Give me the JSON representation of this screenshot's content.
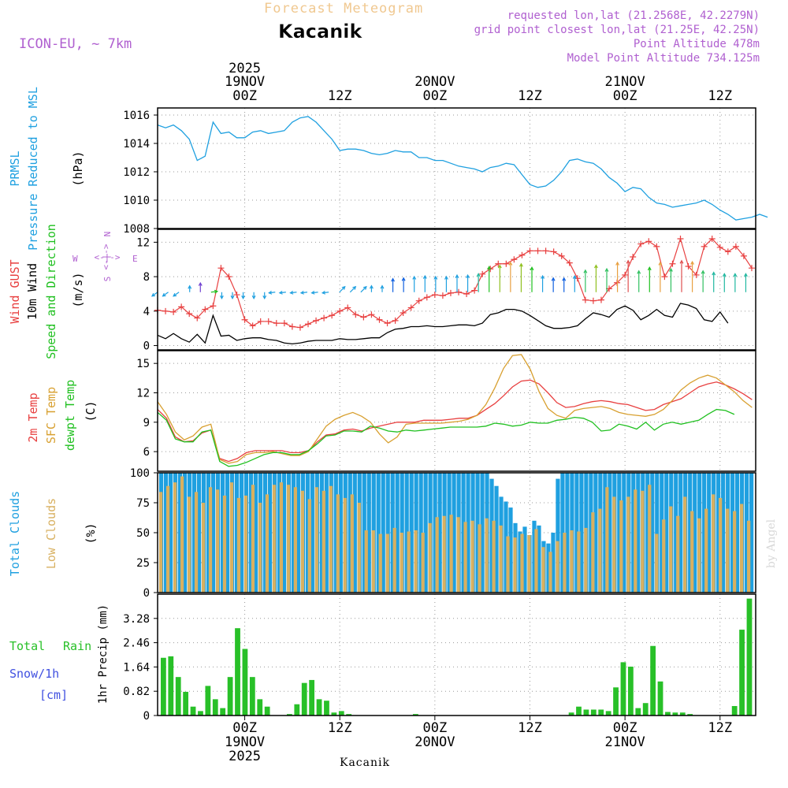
{
  "header": {
    "super_title": "Forecast Meteogram",
    "location": "Kacanik",
    "model": "ICON-EU, ~ 7km",
    "requested": "requested lon,lat (21.2568E, 42.2279N)",
    "grid_point": "grid point closest lon,lat (21.25E, 42.25N)",
    "point_altitude": "Point Altitude 478m",
    "model_altitude": "Model Point Altitude 734.125m",
    "footer_location": "Kacanik",
    "watermark": "by Angel"
  },
  "colors": {
    "pressure": "#1fa0e0",
    "gust": "#e84040",
    "wind": "#000000",
    "temp2m": "#e84040",
    "sfc": "#d8a030",
    "dewpt": "#20c020",
    "total_clouds": "#1fa0e0",
    "low_clouds": "#d8b060",
    "rain": "#28c028",
    "snow": "#4050e0",
    "purple": "#b060d0",
    "title": "#f0c890"
  },
  "time_axis": {
    "top": [
      {
        "hour": 18,
        "line1": "2025",
        "line2": "19NOV",
        "line3": "00Z"
      },
      {
        "hour": 30,
        "line1": "",
        "line2": "",
        "line3": "12Z"
      },
      {
        "hour": 42,
        "line1": "",
        "line2": "20NOV",
        "line3": "00Z"
      },
      {
        "hour": 54,
        "line1": "",
        "line2": "",
        "line3": "12Z"
      },
      {
        "hour": 66,
        "line1": "",
        "line2": "21NOV",
        "line3": "00Z"
      },
      {
        "hour": 78,
        "line1": "",
        "line2": "",
        "line3": "12Z"
      }
    ],
    "bottom": [
      {
        "hour": 18,
        "line1": "00Z",
        "line2": "19NOV",
        "line3": "2025"
      },
      {
        "hour": 30,
        "line1": "12Z",
        "line2": "",
        "line3": ""
      },
      {
        "hour": 42,
        "line1": "00Z",
        "line2": "20NOV",
        "line3": ""
      },
      {
        "hour": 54,
        "line1": "12Z",
        "line2": "",
        "line3": ""
      },
      {
        "hour": 66,
        "line1": "00Z",
        "line2": "21NOV",
        "line3": ""
      },
      {
        "hour": 78,
        "line1": "12Z",
        "line2": "",
        "line3": ""
      }
    ]
  },
  "panels": {
    "pressure": {
      "labels": [
        "PRMSL",
        "Pressure Reduced to MSL",
        "(hPa)"
      ],
      "ticks": [
        1008,
        1010,
        1012,
        1014,
        1016
      ]
    },
    "wind": {
      "labels": [
        "Wind GUST",
        "10m Wind",
        "Speed and Direction",
        "(m/s)"
      ],
      "ticks": [
        0,
        4,
        8,
        12
      ],
      "compass": {
        "n": "N",
        "s": "S",
        "w": "W",
        "e": "E",
        "arrow": "<-|->"
      }
    },
    "temp": {
      "labels": [
        "2m Temp",
        "SFC Temp",
        "dewpt Temp",
        "(C)"
      ],
      "ticks": [
        6,
        9,
        12,
        15
      ]
    },
    "clouds": {
      "labels": [
        "Total Clouds",
        "Low Clouds",
        "(%)"
      ],
      "ticks": [
        0,
        25,
        50,
        75,
        100
      ]
    },
    "precip": {
      "labels": [
        "Total",
        "Rain",
        "Snow/1h",
        "[cm]",
        "1hr Precip (mm)"
      ],
      "ticks": [
        "0",
        "0.82",
        "1.64",
        "2.46",
        "3.28"
      ]
    }
  },
  "chart_data": [
    {
      "type": "line",
      "title": "PRMSL Pressure Reduced to MSL",
      "ylabel": "hPa",
      "ylim": [
        1008,
        1016.5
      ],
      "x_start_hour": 7,
      "x_step_hours": 1,
      "x_end_hour": 82,
      "series": [
        {
          "name": "PRMSL",
          "values": [
            1015.3,
            1015.1,
            1015.3,
            1014.9,
            1014.3,
            1012.8,
            1013.1,
            1015.5,
            1014.7,
            1014.8,
            1014.4,
            1014.4,
            1014.8,
            1014.9,
            1014.7,
            1014.8,
            1014.9,
            1015.5,
            1015.8,
            1015.9,
            1015.5,
            1014.9,
            1014.3,
            1013.5,
            1013.6,
            1013.6,
            1013.5,
            1013.3,
            1013.2,
            1013.3,
            1013.5,
            1013.4,
            1013.4,
            1013.0,
            1013.0,
            1012.8,
            1012.8,
            1012.6,
            1012.4,
            1012.3,
            1012.2,
            1012.0,
            1012.3,
            1012.4,
            1012.6,
            1012.5,
            1011.8,
            1011.1,
            1010.9,
            1011.0,
            1011.4,
            1012.0,
            1012.8,
            1012.9,
            1012.7,
            1012.6,
            1012.2,
            1011.6,
            1011.2,
            1010.6,
            1010.9,
            1010.8,
            1010.2,
            1009.8,
            1009.7,
            1009.5,
            1009.6,
            1009.7,
            1009.8,
            1010.0,
            1009.7,
            1009.3,
            1009.0,
            1008.6,
            1008.7,
            1008.8,
            1009.0,
            1008.8
          ]
        }
      ]
    },
    {
      "type": "line",
      "title": "Wind GUST / 10m Wind Speed and Direction",
      "ylabel": "m/s",
      "ylim": [
        -0.5,
        13.5
      ],
      "x_start_hour": 7,
      "x_step_hours": 1,
      "series": [
        {
          "name": "Wind GUST",
          "values": [
            4.1,
            4.0,
            3.9,
            4.5,
            3.7,
            3.2,
            4.2,
            4.6,
            9.0,
            8.0,
            5.9,
            3.0,
            2.3,
            2.8,
            2.8,
            2.6,
            2.6,
            2.2,
            2.1,
            2.5,
            2.9,
            3.2,
            3.5,
            4.0,
            4.4,
            3.6,
            3.3,
            3.6,
            3.0,
            2.6,
            2.9,
            3.8,
            4.4,
            5.2,
            5.6,
            5.9,
            5.8,
            6.1,
            6.2,
            6.0,
            6.4,
            8.3,
            8.9,
            9.5,
            9.5,
            10.0,
            10.5,
            11.0,
            11.0,
            11.0,
            10.9,
            10.4,
            9.6,
            7.8,
            5.3,
            5.2,
            5.3,
            6.6,
            7.3,
            8.2,
            10.3,
            11.8,
            12.1,
            11.5,
            8.0,
            9.5,
            12.4,
            9.2,
            8.2,
            11.5,
            12.4,
            11.4,
            10.9,
            11.5,
            10.4,
            9.0
          ]
        },
        {
          "name": "10m Wind",
          "values": [
            1.2,
            0.8,
            1.4,
            0.8,
            0.4,
            1.3,
            0.3,
            3.5,
            1.1,
            1.2,
            0.6,
            0.8,
            0.9,
            0.9,
            0.7,
            0.6,
            0.3,
            0.2,
            0.3,
            0.5,
            0.6,
            0.6,
            0.6,
            0.8,
            0.7,
            0.7,
            0.8,
            0.9,
            0.9,
            1.5,
            1.9,
            2.0,
            2.2,
            2.2,
            2.3,
            2.2,
            2.2,
            2.3,
            2.4,
            2.4,
            2.3,
            2.6,
            3.6,
            3.8,
            4.2,
            4.2,
            4.0,
            3.5,
            2.9,
            2.3,
            2.0,
            2.0,
            2.1,
            2.3,
            3.1,
            3.8,
            3.6,
            3.3,
            4.2,
            4.6,
            4.1,
            3.0,
            3.5,
            4.2,
            3.5,
            3.3,
            4.9,
            4.7,
            4.3,
            3.0,
            2.8,
            3.9,
            2.6
          ]
        }
      ],
      "barbs": {
        "band_directions": [
          "SW",
          "SW",
          "SW",
          "N",
          "N",
          "E",
          "S",
          "S",
          "S",
          "S",
          "S",
          "W",
          "W",
          "W",
          "W",
          "W",
          "W",
          "NE",
          "NE",
          "NE",
          "N",
          "N",
          "N",
          "N",
          "N",
          "N",
          "N",
          "N",
          "N",
          "N",
          "N",
          "N",
          "N",
          "N",
          "N",
          "N",
          "N",
          "N",
          "N",
          "N",
          "N",
          "N",
          "N",
          "N",
          "N",
          "N",
          "N",
          "N",
          "N",
          "N",
          "N",
          "N",
          "N",
          "N",
          "N",
          "N"
        ]
      }
    },
    {
      "type": "line",
      "title": "2m Temp / SFC Temp / dewpt Temp",
      "ylabel": "C",
      "ylim": [
        4,
        16.3
      ],
      "x_start_hour": 7,
      "x_step_hours": 1,
      "series": [
        {
          "name": "2m Temp",
          "values": [
            10.3,
            9.4,
            7.5,
            7.0,
            7.1,
            7.9,
            8.2,
            5.3,
            5.0,
            5.3,
            5.9,
            6.1,
            6.1,
            6.1,
            6.1,
            5.9,
            5.9,
            6.1,
            7.0,
            7.7,
            7.8,
            8.2,
            8.3,
            8.1,
            8.4,
            8.6,
            8.8,
            9.0,
            9.0,
            9.0,
            9.2,
            9.2,
            9.2,
            9.3,
            9.4,
            9.4,
            9.7,
            10.3,
            10.9,
            11.7,
            12.6,
            13.2,
            13.3,
            12.9,
            12.0,
            11.0,
            10.5,
            10.6,
            10.9,
            11.1,
            11.2,
            11.1,
            10.9,
            10.8,
            10.5,
            10.2,
            10.3,
            10.8,
            11.1,
            11.4,
            12.0,
            12.6,
            12.9,
            13.1,
            12.8,
            12.4,
            11.9,
            11.3
          ]
        },
        {
          "name": "SFC Temp",
          "values": [
            11.1,
            9.8,
            8.0,
            7.2,
            7.6,
            8.5,
            8.8,
            5.2,
            4.8,
            5.0,
            5.7,
            5.9,
            5.9,
            6.0,
            5.8,
            5.6,
            5.6,
            6.0,
            7.3,
            8.6,
            9.3,
            9.7,
            10.0,
            9.6,
            9.0,
            7.8,
            6.9,
            7.5,
            8.8,
            8.9,
            8.9,
            8.9,
            8.9,
            9.0,
            9.1,
            9.3,
            9.7,
            10.8,
            12.5,
            14.5,
            15.8,
            15.9,
            14.4,
            12.1,
            10.4,
            9.7,
            9.4,
            10.2,
            10.4,
            10.5,
            10.6,
            10.4,
            10.0,
            9.8,
            9.7,
            9.6,
            9.8,
            10.3,
            11.2,
            12.3,
            13.0,
            13.5,
            13.8,
            13.5,
            12.8,
            12.1,
            11.2,
            10.5
          ]
        },
        {
          "name": "dewpt Temp",
          "values": [
            10.0,
            9.2,
            7.3,
            7.0,
            7.0,
            8.0,
            8.2,
            5.0,
            4.5,
            4.6,
            4.9,
            5.3,
            5.7,
            5.9,
            5.9,
            5.7,
            5.7,
            6.1,
            6.8,
            7.6,
            7.7,
            8.1,
            8.1,
            8.0,
            8.6,
            8.4,
            8.1,
            8.0,
            8.2,
            8.1,
            8.2,
            8.3,
            8.4,
            8.5,
            8.5,
            8.5,
            8.5,
            8.6,
            8.9,
            8.8,
            8.6,
            8.7,
            9.0,
            8.9,
            8.9,
            9.2,
            9.3,
            9.5,
            9.4,
            9.0,
            8.1,
            8.2,
            8.8,
            8.6,
            8.3,
            9.0,
            8.2,
            8.8,
            9.0,
            8.8,
            9.0,
            9.2,
            9.8,
            10.3,
            10.2,
            9.8
          ]
        }
      ]
    },
    {
      "type": "bar",
      "title": "Total Clouds / Low Clouds",
      "ylabel": "%",
      "ylim": [
        0,
        100
      ],
      "x_start_hour": 7,
      "x_step_hours": 1,
      "series": [
        {
          "name": "Total Clouds",
          "values": [
            100,
            100,
            100,
            100,
            100,
            100,
            100,
            100,
            100,
            100,
            100,
            100,
            100,
            100,
            100,
            100,
            100,
            100,
            100,
            100,
            100,
            100,
            100,
            100,
            100,
            100,
            100,
            100,
            100,
            100,
            100,
            100,
            100,
            100,
            100,
            100,
            100,
            100,
            100,
            100,
            100,
            100,
            100,
            100,
            100,
            100,
            100,
            100,
            100,
            100,
            100,
            100,
            100,
            100,
            100,
            100,
            100,
            100,
            100,
            100,
            100,
            100,
            100,
            100,
            100,
            100,
            100,
            100,
            100,
            100,
            95,
            89,
            80,
            76,
            71,
            58,
            51,
            55,
            48,
            60,
            56,
            43,
            41,
            50,
            95,
            100,
            100,
            100,
            100,
            100,
            100,
            100,
            100,
            100,
            100,
            100,
            100,
            100,
            100,
            100,
            100,
            100,
            100,
            100,
            100,
            100,
            100,
            100,
            100,
            100,
            100,
            100,
            100,
            100,
            100,
            100,
            100,
            100,
            100,
            100,
            100,
            100,
            100,
            100,
            100,
            100
          ]
        },
        {
          "name": "Low Clouds",
          "values": [
            84,
            89,
            92,
            97,
            80,
            84,
            75,
            88,
            86,
            81,
            92,
            79,
            81,
            90,
            75,
            82,
            90,
            92,
            90,
            88,
            85,
            78,
            88,
            85,
            89,
            82,
            79,
            82,
            75,
            52,
            52,
            49,
            49,
            54,
            50,
            51,
            52,
            50,
            58,
            63,
            64,
            65,
            63,
            59,
            60,
            57,
            62,
            60,
            56,
            47,
            46,
            49,
            48,
            53,
            38,
            34,
            43,
            50,
            52,
            51,
            54,
            67,
            70,
            88,
            80,
            77,
            80,
            86,
            85,
            90,
            49,
            61,
            72,
            64,
            80,
            68,
            62,
            70,
            82,
            79,
            70,
            68,
            74,
            60
          ]
        }
      ]
    },
    {
      "type": "bar",
      "title": "1hr Precip (mm)",
      "ylabel": "mm",
      "ylim": [
        0,
        4.1
      ],
      "x_start_hour": 7,
      "x_step_hours": 1,
      "series": [
        {
          "name": "Total Rain",
          "values": [
            1.95,
            2.0,
            1.3,
            0.8,
            0.3,
            0.15,
            1.0,
            0.55,
            0.25,
            1.3,
            2.95,
            2.25,
            1.3,
            0.55,
            0.3,
            0.0,
            0.0,
            0.05,
            0.38,
            1.1,
            1.2,
            0.55,
            0.5,
            0.1,
            0.15,
            0.05,
            0.0,
            0.0,
            0.0,
            0.0,
            0.0,
            0.0,
            0.0,
            0.0,
            0.05,
            0.0,
            0.0,
            0.0,
            0.0,
            0.0,
            0.0,
            0.0,
            0.0,
            0.0,
            0.0,
            0.0,
            0.0,
            0.0,
            0.0,
            0.0,
            0.0,
            0.0,
            0.0,
            0.0,
            0.0,
            0.1,
            0.3,
            0.2,
            0.2,
            0.2,
            0.15,
            0.95,
            1.8,
            1.65,
            0.25,
            0.42,
            2.35,
            1.15,
            0.12,
            0.1,
            0.1,
            0.05,
            0.0,
            0.0,
            0.0,
            0.0,
            0.0,
            0.32,
            2.9,
            3.95
          ]
        }
      ]
    }
  ]
}
